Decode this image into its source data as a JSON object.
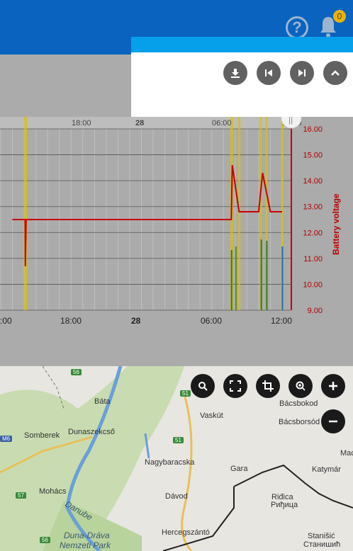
{
  "header": {
    "help_icon": "question-circle-icon",
    "notification_count": "0"
  },
  "panel": {
    "buttons": [
      "download-icon",
      "skip-back-icon",
      "skip-forward-icon",
      "chevron-up-icon"
    ]
  },
  "chart_data": {
    "type": "line",
    "title": "",
    "ylabel": "Battery voltage",
    "y_ticks": [
      "16.00",
      "15.00",
      "14.00",
      "13.00",
      "12.00",
      "11.00",
      "10.00",
      "9.00"
    ],
    "ylim": [
      9,
      16
    ],
    "x_ticks": [
      "18:00",
      "28",
      "06:00",
      "12:00"
    ],
    "x_ticks_bottom": [
      ":00",
      "18:00",
      "28",
      "06:00",
      "12:00"
    ],
    "series": [
      {
        "name": "Battery voltage",
        "color": "#c80000",
        "x": [
          "27 13:00",
          "27 14:05",
          "27 14:06",
          "27 14:10",
          "28 07:40",
          "28 07:45",
          "28 08:20",
          "28 10:00",
          "28 10:20",
          "28 11:00",
          "28 12:00"
        ],
        "values": [
          12.5,
          12.5,
          10.7,
          12.5,
          12.5,
          14.6,
          12.8,
          12.8,
          14.3,
          12.8,
          12.8
        ]
      }
    ],
    "grid": true
  },
  "map_controls": [
    "search-icon",
    "fullscreen-icon",
    "crop-icon",
    "zoom-in-icon",
    "plus-icon",
    "minus-icon"
  ],
  "map": {
    "places": [
      "Báta",
      "Dunaszekcső",
      "Somberek",
      "Nagybaracska",
      "Vaskút",
      "Bácsbokod",
      "Bácsborsód",
      "Gara",
      "Mohács",
      "Dávod",
      "Katymár",
      "Riđica",
      "Риђица",
      "Hercegszántó",
      "Stanišić",
      "Станишић",
      "Danube",
      "Duna-Dráva",
      "Nemzeti Park",
      "Mac"
    ],
    "road_labels": [
      "56",
      "51",
      "51",
      "M6",
      "57",
      "56"
    ]
  }
}
